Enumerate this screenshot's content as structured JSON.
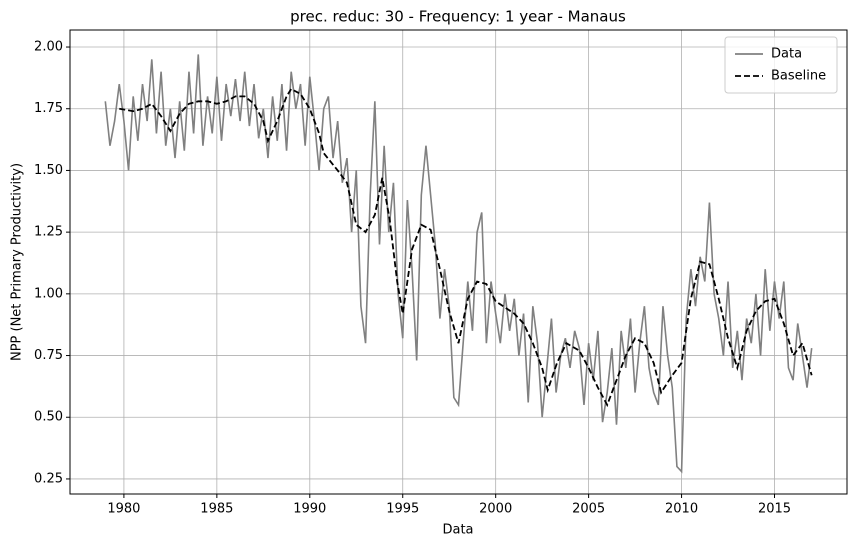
{
  "chart_data": {
    "type": "line",
    "title": "prec. reduc: 30 - Frequency: 1 year - Manaus",
    "xlabel": "Data",
    "ylabel": "NPP (Net Primary Productivity)",
    "xlim": [
      1977.1,
      2018.9
    ],
    "ylim": [
      0.189,
      2.069
    ],
    "xticks": [
      1980,
      1985,
      1990,
      1995,
      2000,
      2005,
      2010,
      2015
    ],
    "yticks": [
      0.25,
      {
        "value": 0.5,
        "label": "0.50"
      },
      0.75,
      {
        "value": 1,
        "label": "1.00"
      },
      1.25,
      {
        "value": 1.5,
        "label": "1.50"
      },
      1.75,
      {
        "value": 2,
        "label": "2.00"
      }
    ],
    "grid": true,
    "legend": "upper right",
    "series": [
      {
        "name": "Data",
        "color": "#808080",
        "dash": false,
        "x": [
          1979,
          1979.25,
          1979.5,
          1979.75,
          1980,
          1980.25,
          1980.5,
          1980.75,
          1981,
          1981.25,
          1981.5,
          1981.75,
          1982,
          1982.25,
          1982.5,
          1982.75,
          1983,
          1983.25,
          1983.5,
          1983.75,
          1984,
          1984.25,
          1984.5,
          1984.75,
          1985,
          1985.25,
          1985.5,
          1985.75,
          1986,
          1986.25,
          1986.5,
          1986.75,
          1987,
          1987.25,
          1987.5,
          1987.75,
          1988,
          1988.25,
          1988.5,
          1988.75,
          1989,
          1989.25,
          1989.5,
          1989.75,
          1990,
          1990.25,
          1990.5,
          1990.75,
          1991,
          1991.25,
          1991.5,
          1991.75,
          1992,
          1992.25,
          1992.5,
          1992.75,
          1993,
          1993.25,
          1993.5,
          1993.75,
          1994,
          1994.25,
          1994.5,
          1994.75,
          1995,
          1995.25,
          1995.5,
          1995.75,
          1996,
          1996.25,
          1996.5,
          1996.75,
          1997,
          1997.25,
          1997.5,
          1997.75,
          1998,
          1998.25,
          1998.5,
          1998.75,
          1999,
          1999.25,
          1999.5,
          1999.75,
          2000,
          2000.25,
          2000.5,
          2000.75,
          2001,
          2001.25,
          2001.5,
          2001.75,
          2002,
          2002.25,
          2002.5,
          2002.75,
          2003,
          2003.25,
          2003.5,
          2003.75,
          2004,
          2004.25,
          2004.5,
          2004.75,
          2005,
          2005.25,
          2005.5,
          2005.75,
          2006,
          2006.25,
          2006.5,
          2006.75,
          2007,
          2007.25,
          2007.5,
          2007.75,
          2008,
          2008.25,
          2008.5,
          2008.75,
          2009,
          2009.25,
          2009.5,
          2009.75,
          2010,
          2010.25,
          2010.5,
          2010.75,
          2011,
          2011.25,
          2011.5,
          2011.75,
          2012,
          2012.25,
          2012.5,
          2012.75,
          2013,
          2013.25,
          2013.5,
          2013.75,
          2014,
          2014.25,
          2014.5,
          2014.75,
          2015,
          2015.25,
          2015.5,
          2015.75,
          2016,
          2016.25,
          2016.5,
          2016.75,
          2017
        ],
        "values": [
          1.78,
          1.6,
          1.7,
          1.85,
          1.7,
          1.5,
          1.8,
          1.62,
          1.85,
          1.7,
          1.95,
          1.65,
          1.9,
          1.6,
          1.75,
          1.55,
          1.78,
          1.58,
          1.9,
          1.65,
          1.97,
          1.6,
          1.8,
          1.65,
          1.88,
          1.62,
          1.85,
          1.72,
          1.87,
          1.7,
          1.9,
          1.68,
          1.85,
          1.63,
          1.75,
          1.55,
          1.8,
          1.62,
          1.85,
          1.58,
          1.9,
          1.75,
          1.85,
          1.6,
          1.88,
          1.7,
          1.5,
          1.75,
          1.8,
          1.55,
          1.7,
          1.45,
          1.55,
          1.25,
          1.5,
          0.95,
          0.8,
          1.4,
          1.78,
          1.2,
          1.6,
          1.25,
          1.45,
          1.0,
          0.82,
          1.38,
          1.1,
          0.73,
          1.4,
          1.6,
          1.4,
          1.2,
          0.9,
          1.1,
          0.95,
          0.58,
          0.55,
          0.8,
          1.05,
          0.85,
          1.25,
          1.33,
          0.8,
          1.05,
          0.92,
          0.8,
          1.0,
          0.85,
          0.98,
          0.75,
          0.92,
          0.56,
          0.95,
          0.8,
          0.5,
          0.7,
          0.9,
          0.6,
          0.75,
          0.82,
          0.7,
          0.85,
          0.78,
          0.55,
          0.8,
          0.65,
          0.85,
          0.48,
          0.6,
          0.78,
          0.47,
          0.85,
          0.7,
          0.9,
          0.6,
          0.8,
          0.95,
          0.7,
          0.6,
          0.55,
          0.95,
          0.75,
          0.62,
          0.3,
          0.28,
          0.9,
          1.1,
          0.95,
          1.15,
          1.05,
          1.37,
          1.0,
          0.9,
          0.75,
          1.05,
          0.7,
          0.85,
          0.65,
          0.9,
          0.8,
          1.0,
          0.75,
          1.1,
          0.85,
          1.05,
          0.9,
          1.05,
          0.7,
          0.65,
          0.88,
          0.75,
          0.62,
          0.78
        ]
      },
      {
        "name": "Baseline",
        "color": "#000000",
        "dash": true,
        "x": [
          1979.75,
          1980.5,
          1981,
          1981.5,
          1982,
          1982.5,
          1983,
          1983.5,
          1984,
          1984.5,
          1985,
          1985.5,
          1986,
          1986.5,
          1987,
          1987.5,
          1987.75,
          1988.25,
          1988.75,
          1989,
          1989.5,
          1990,
          1990.5,
          1990.75,
          1991.5,
          1992,
          1992.5,
          1993,
          1993.5,
          1993.9,
          1994.3,
          1994.7,
          1995,
          1995.5,
          1996,
          1996.5,
          1997,
          1997.5,
          1998,
          1998.5,
          1999,
          1999.5,
          2000,
          2001,
          2001.5,
          2002,
          2002.5,
          2002.8,
          2003.3,
          2003.8,
          2004.5,
          2005,
          2005.5,
          2006,
          2006.5,
          2007,
          2007.5,
          2008,
          2008.5,
          2008.9,
          2009.5,
          2010,
          2010.5,
          2011,
          2011.5,
          2012,
          2012.5,
          2013,
          2013.5,
          2014,
          2014.5,
          2015,
          2015.5,
          2016,
          2016.5,
          2017
        ],
        "values": [
          1.75,
          1.74,
          1.75,
          1.77,
          1.72,
          1.66,
          1.73,
          1.77,
          1.78,
          1.78,
          1.77,
          1.78,
          1.8,
          1.8,
          1.77,
          1.7,
          1.62,
          1.7,
          1.8,
          1.83,
          1.81,
          1.75,
          1.65,
          1.57,
          1.5,
          1.45,
          1.28,
          1.25,
          1.32,
          1.47,
          1.3,
          1.05,
          0.92,
          1.18,
          1.28,
          1.26,
          1.1,
          0.93,
          0.8,
          0.98,
          1.05,
          1.04,
          0.97,
          0.92,
          0.88,
          0.8,
          0.7,
          0.61,
          0.72,
          0.8,
          0.77,
          0.7,
          0.62,
          0.55,
          0.65,
          0.75,
          0.82,
          0.8,
          0.72,
          0.6,
          0.67,
          0.72,
          0.98,
          1.13,
          1.12,
          0.98,
          0.82,
          0.7,
          0.85,
          0.93,
          0.97,
          0.98,
          0.88,
          0.75,
          0.8,
          0.67
        ]
      }
    ]
  }
}
